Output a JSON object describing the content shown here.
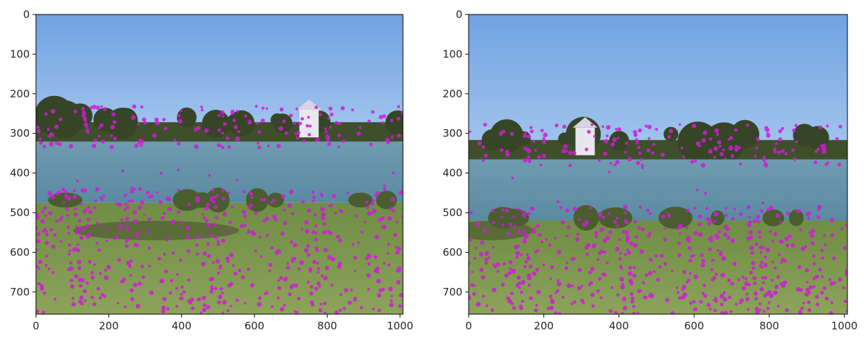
{
  "chart_data": [
    {
      "type": "image",
      "panel": "left",
      "title": "",
      "xlabel": "",
      "ylabel": "",
      "xlim": [
        0,
        1008
      ],
      "ylim": [
        756,
        0
      ],
      "xticks": [
        "0",
        "200",
        "400",
        "600",
        "800",
        "1000"
      ],
      "yticks": [
        "0",
        "100",
        "200",
        "300",
        "400",
        "500",
        "600",
        "700"
      ],
      "content": "lake landscape photo with keypoint overlay",
      "keypoint_color": "#d01cd6",
      "horizon_y": 310,
      "shore_y": 475
    },
    {
      "type": "image",
      "panel": "right",
      "title": "",
      "xlabel": "",
      "ylabel": "",
      "xlim": [
        0,
        1008
      ],
      "ylim": [
        756,
        0
      ],
      "xticks": [
        "0",
        "200",
        "400",
        "600",
        "800",
        "1000"
      ],
      "yticks": [
        "0",
        "100",
        "200",
        "300",
        "400",
        "500",
        "600",
        "700"
      ],
      "content": "lake landscape photo with keypoint overlay",
      "keypoint_color": "#d01cd6",
      "horizon_y": 355,
      "shore_y": 520
    }
  ],
  "colors": {
    "sky_top": "#6fa2e2",
    "sky_bottom": "#a8c8ee",
    "water": "#5f8ea5",
    "grass": "#7e9a4e",
    "trees": "#3f4f2c",
    "keypoints": "#d01cd6"
  }
}
